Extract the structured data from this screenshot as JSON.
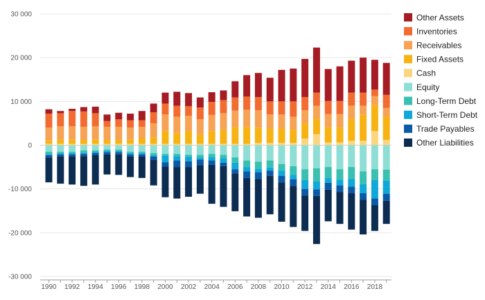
{
  "chart_data": {
    "type": "bar",
    "stacked": true,
    "title": "",
    "xlabel": "",
    "ylabel": "",
    "ylim": [
      -30000,
      30000
    ],
    "yticks": [
      30000,
      20000,
      10000,
      0,
      -10000,
      -20000,
      -30000
    ],
    "ytick_labels": [
      "30 000",
      "20 000",
      "10 000",
      "0",
      "-10 000",
      "-20 000",
      "-30 000"
    ],
    "xtick_labels": [
      "1990",
      "1992",
      "1994",
      "1996",
      "1998",
      "2000",
      "2002",
      "2004",
      "2006",
      "2008",
      "2010",
      "2012",
      "2014",
      "2016",
      "2018"
    ],
    "grid": true,
    "legend_position": "right",
    "categories": [
      1990,
      1991,
      1992,
      1993,
      1994,
      1995,
      1996,
      1997,
      1998,
      1999,
      2000,
      2001,
      2002,
      2003,
      2004,
      2005,
      2006,
      2007,
      2008,
      2009,
      2010,
      2011,
      2012,
      2013,
      2014,
      2015,
      2016,
      2017,
      2018,
      2019
    ],
    "assets": [
      {
        "name": "Cash",
        "color": "#fcd581",
        "values": [
          300,
          300,
          300,
          300,
          300,
          300,
          300,
          300,
          300,
          300,
          300,
          300,
          300,
          300,
          300,
          300,
          300,
          300,
          500,
          500,
          500,
          500,
          1500,
          2500,
          600,
          600,
          1000,
          1000,
          3200,
          1200
        ]
      },
      {
        "name": "Fixed Assets",
        "color": "#f7b313",
        "values": [
          700,
          1000,
          1000,
          900,
          1000,
          900,
          900,
          1000,
          1200,
          1500,
          3000,
          2500,
          3000,
          2200,
          2900,
          3200,
          3800,
          3800,
          3500,
          3300,
          3300,
          3000,
          3500,
          3500,
          3500,
          3500,
          5000,
          6000,
          6000,
          5300
        ]
      },
      {
        "name": "Receivables",
        "color": "#f6a355",
        "values": [
          3000,
          3000,
          3000,
          3000,
          3000,
          3000,
          3000,
          2700,
          2700,
          3200,
          3700,
          3700,
          3400,
          3400,
          3700,
          3800,
          3800,
          4000,
          4000,
          3200,
          3200,
          3000,
          3000,
          3000,
          3000,
          3000,
          3000,
          2000,
          2000,
          2000
        ]
      },
      {
        "name": "Inventories",
        "color": "#f26c32",
        "values": [
          3200,
          3000,
          3500,
          3500,
          3000,
          1300,
          1700,
          1700,
          1500,
          2500,
          2500,
          2500,
          2200,
          2700,
          3000,
          3000,
          3000,
          3000,
          3000,
          3000,
          3000,
          3500,
          3000,
          3000,
          3000,
          3000,
          3000,
          3000,
          1500,
          3000
        ]
      },
      {
        "name": "Other Assets",
        "color": "#a51c24",
        "values": [
          1000,
          500,
          500,
          1000,
          1500,
          1500,
          1500,
          1500,
          2100,
          2000,
          2500,
          3200,
          3000,
          2300,
          2200,
          2200,
          3700,
          4900,
          5500,
          5400,
          7200,
          7500,
          8700,
          10300,
          7300,
          7900,
          7300,
          8000,
          6800,
          7300
        ]
      }
    ],
    "liabilities": [
      {
        "name": "Equity",
        "color": "#8fded6",
        "values": [
          1500,
          1500,
          1500,
          1200,
          1200,
          1000,
          1000,
          1500,
          1500,
          1800,
          2000,
          2000,
          2200,
          2200,
          2000,
          2200,
          2800,
          3500,
          3800,
          3500,
          4300,
          4800,
          5500,
          5300,
          5000,
          5500,
          5000,
          6000,
          5500,
          5600
        ]
      },
      {
        "name": "Long-Term Debt",
        "color": "#39c0b0",
        "values": [
          500,
          300,
          300,
          500,
          300,
          300,
          300,
          300,
          300,
          500,
          400,
          500,
          500,
          600,
          700,
          800,
          1200,
          1500,
          1600,
          1600,
          1500,
          2000,
          2500,
          3000,
          2600,
          2400,
          2700,
          2900,
          2500,
          2500
        ]
      },
      {
        "name": "Short-Term Debt",
        "color": "#10a8d8",
        "values": [
          300,
          300,
          300,
          300,
          300,
          300,
          300,
          300,
          300,
          300,
          1500,
          1000,
          1000,
          500,
          800,
          1000,
          1500,
          1000,
          800,
          700,
          1200,
          1000,
          2000,
          1800,
          1000,
          1300,
          1800,
          2100,
          4200,
          3000
        ]
      },
      {
        "name": "Trade Payables",
        "color": "#0a5aa8",
        "values": [
          500,
          500,
          500,
          500,
          500,
          500,
          500,
          500,
          500,
          800,
          1000,
          1500,
          1300,
          1300,
          1000,
          800,
          1000,
          1500,
          1500,
          1200,
          1500,
          1500,
          1500,
          1500,
          1600,
          1500,
          1500,
          1500,
          1500,
          1600
        ]
      },
      {
        "name": "Other Liabilities",
        "color": "#0c2c52",
        "values": [
          5700,
          6200,
          6400,
          6800,
          6700,
          4600,
          4700,
          4700,
          4900,
          5800,
          7000,
          7200,
          6800,
          6500,
          8900,
          9300,
          8600,
          8800,
          8900,
          8800,
          9000,
          9400,
          8100,
          11000,
          7200,
          7300,
          8300,
          7900,
          5900,
          5300
        ]
      }
    ],
    "legend": [
      "Other Assets",
      "Inventories",
      "Receivables",
      "Fixed Assets",
      "Cash",
      "Equity",
      "Long-Term Debt",
      "Short-Term Debt",
      "Trade Payables",
      "Other Liabilities"
    ]
  }
}
